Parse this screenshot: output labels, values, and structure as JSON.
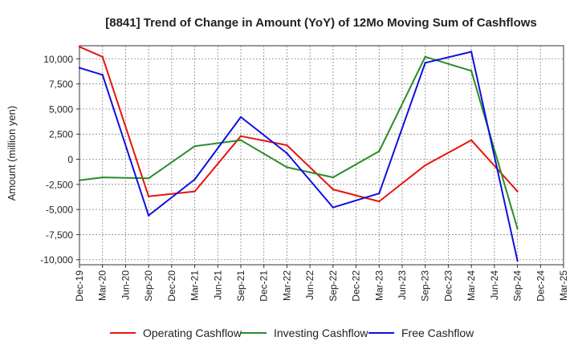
{
  "chart_data": {
    "type": "line",
    "title": "[8841]  Trend of Change in Amount (YoY) of 12Mo Moving Sum of Cashflows",
    "xlabel": "",
    "ylabel": "Amount (million yen)",
    "ylim": [
      -10500,
      11300
    ],
    "yticks": [
      10000,
      7500,
      5000,
      2500,
      0,
      -2500,
      -5000,
      -7500,
      -10000
    ],
    "ytick_labels": [
      "10,000",
      "7,500",
      "5,000",
      "2,500",
      "0",
      "-2,500",
      "-5,000",
      "-7,500",
      "-10,000"
    ],
    "categories": [
      "Dec-19",
      "Mar-20",
      "Jun-20",
      "Sep-20",
      "Dec-20",
      "Mar-21",
      "Jun-21",
      "Sep-21",
      "Dec-21",
      "Mar-22",
      "Jun-22",
      "Sep-22",
      "Dec-22",
      "Mar-23",
      "Jun-23",
      "Sep-23",
      "Dec-23",
      "Mar-24",
      "Jun-24",
      "Sep-24",
      "Dec-24",
      "Mar-25"
    ],
    "grid": true,
    "legend_position": "bottom",
    "series": [
      {
        "name": "Operating Cashflow",
        "color": "#e8140e",
        "values": [
          11200,
          10200,
          null,
          -3700,
          null,
          -3200,
          null,
          2300,
          null,
          1400,
          null,
          -3000,
          null,
          -4200,
          null,
          -600,
          null,
          1900,
          null,
          -3200,
          null,
          null
        ]
      },
      {
        "name": "Investing Cashflow",
        "color": "#2a8c2a",
        "values": [
          -2100,
          -1800,
          null,
          -1900,
          null,
          1300,
          null,
          1900,
          null,
          -800,
          null,
          -1800,
          null,
          800,
          null,
          10200,
          null,
          8800,
          null,
          -6900,
          null,
          null
        ]
      },
      {
        "name": "Free Cashflow",
        "color": "#1010dd",
        "values": [
          9100,
          8400,
          null,
          -5600,
          null,
          -2000,
          null,
          4200,
          null,
          600,
          null,
          -4800,
          null,
          -3400,
          null,
          9600,
          null,
          10700,
          null,
          -10100,
          null,
          null
        ]
      }
    ]
  }
}
